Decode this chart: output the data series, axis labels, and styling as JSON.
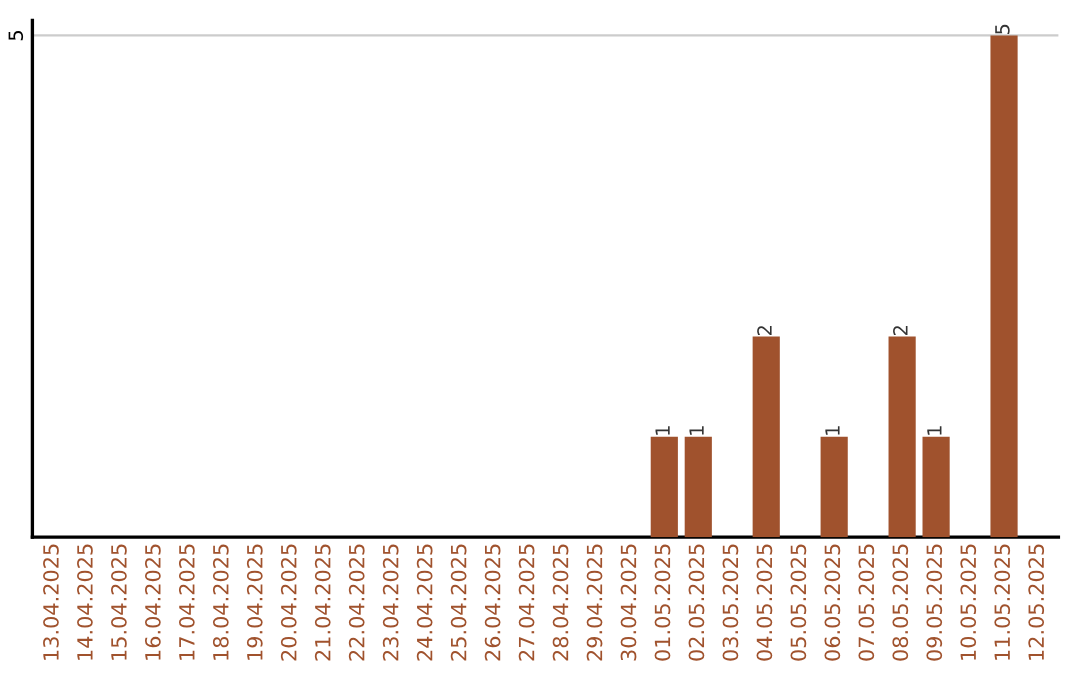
{
  "chart_data": {
    "type": "bar",
    "categories": [
      "13.04.2025",
      "14.04.2025",
      "15.04.2025",
      "16.04.2025",
      "17.04.2025",
      "18.04.2025",
      "19.04.2025",
      "20.04.2025",
      "21.04.2025",
      "22.04.2025",
      "23.04.2025",
      "24.04.2025",
      "25.04.2025",
      "26.04.2025",
      "27.04.2025",
      "28.04.2025",
      "29.04.2025",
      "30.04.2025",
      "01.05.2025",
      "02.05.2025",
      "03.05.2025",
      "04.05.2025",
      "05.05.2025",
      "06.05.2025",
      "07.05.2025",
      "08.05.2025",
      "09.05.2025",
      "10.05.2025",
      "11.05.2025",
      "12.05.2025"
    ],
    "values": [
      null,
      null,
      null,
      null,
      null,
      null,
      null,
      null,
      null,
      null,
      null,
      null,
      null,
      null,
      null,
      null,
      null,
      null,
      1,
      1,
      null,
      2,
      null,
      1,
      null,
      2,
      1,
      null,
      5,
      null
    ],
    "data_labels": true,
    "color": "#a0522d",
    "ylim": [
      0,
      5.15
    ],
    "yticks": [
      5
    ],
    "grid": "y",
    "legend": false
  }
}
